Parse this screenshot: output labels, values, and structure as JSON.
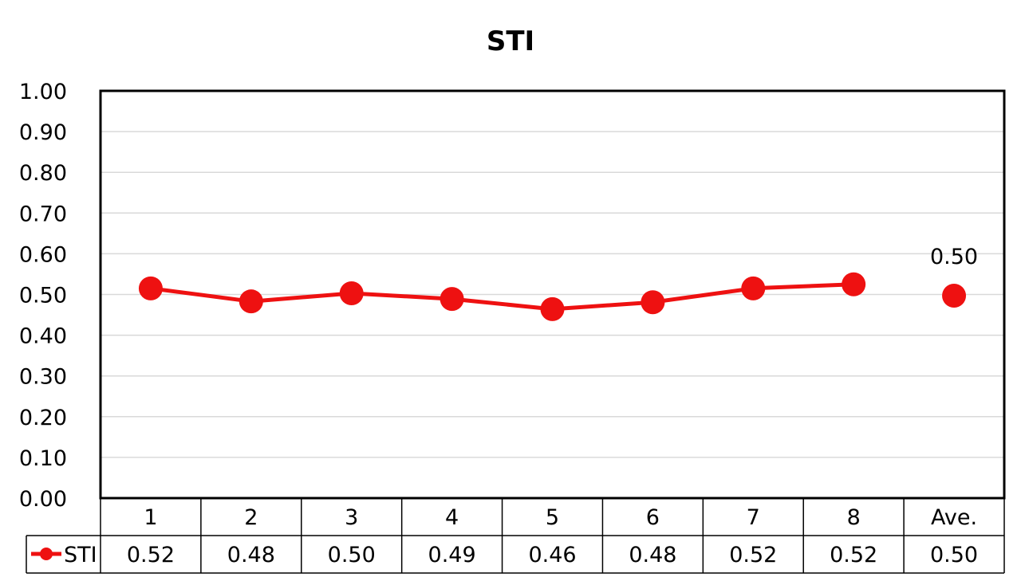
{
  "chart_data": {
    "type": "line",
    "title": "STI",
    "xlabel": "",
    "ylabel": "",
    "categories": [
      "1",
      "2",
      "3",
      "4",
      "5",
      "6",
      "7",
      "8",
      "Ave."
    ],
    "ylim": [
      0,
      1
    ],
    "yticks": [
      "0.00",
      "0.10",
      "0.20",
      "0.30",
      "0.40",
      "0.50",
      "0.60",
      "0.70",
      "0.80",
      "0.90",
      "1.00"
    ],
    "grid": true,
    "series": [
      {
        "name": "STI",
        "color": "#ee1111",
        "values": [
          0.515,
          0.483,
          0.503,
          0.489,
          0.464,
          0.481,
          0.515,
          0.525,
          0.497
        ],
        "table_labels": [
          "0.52",
          "0.48",
          "0.50",
          "0.49",
          "0.46",
          "0.48",
          "0.52",
          "0.52",
          "0.50"
        ]
      }
    ],
    "connected_points": 8,
    "annotations": [
      {
        "category": "Ave.",
        "text": "0.50"
      }
    ],
    "legend": "data-table"
  }
}
